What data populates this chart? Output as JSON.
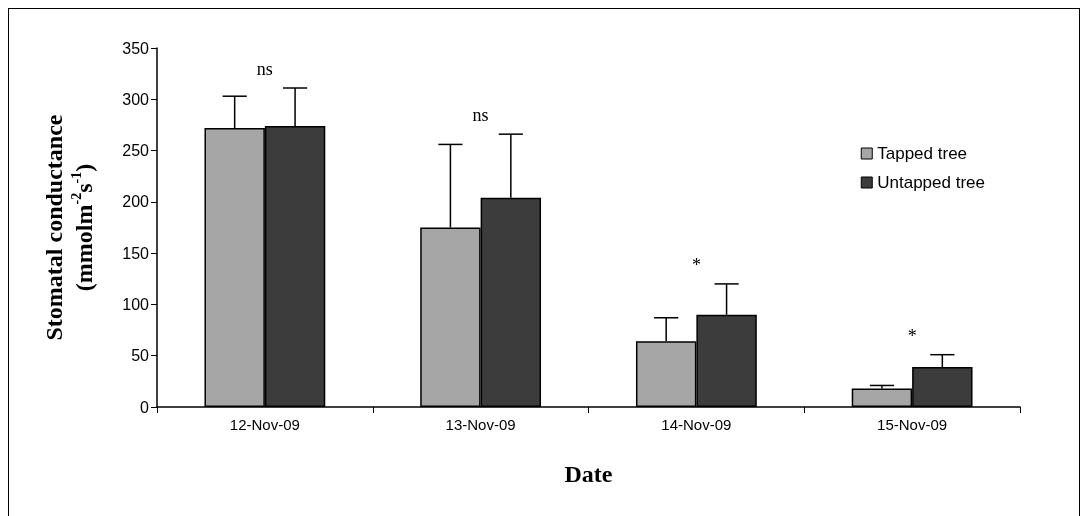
{
  "chart_data": {
    "type": "bar",
    "xlabel": "Date",
    "ylabel": "Stomatal conductance\n(mmolm$^{-2}$s$^{-1}$)",
    "categories": [
      "12-Nov-09",
      "13-Nov-09",
      "14-Nov-09",
      "15-Nov-09"
    ],
    "series": [
      {
        "name": "Tapped tree",
        "color": "#a6a6a6",
        "values": [
          272,
          175,
          64,
          18
        ],
        "errors": [
          31,
          81,
          23,
          3
        ]
      },
      {
        "name": "Untapped tree",
        "color": "#3c3c3c",
        "values": [
          274,
          204,
          90,
          39
        ],
        "errors": [
          37,
          62,
          30,
          12
        ]
      }
    ],
    "ylim": [
      0,
      350
    ],
    "yticks": [
      0,
      50,
      100,
      150,
      200,
      250,
      300,
      350
    ],
    "grid": false,
    "legend": "top right",
    "annotations": [
      "ns",
      "ns",
      "*",
      "*"
    ]
  }
}
